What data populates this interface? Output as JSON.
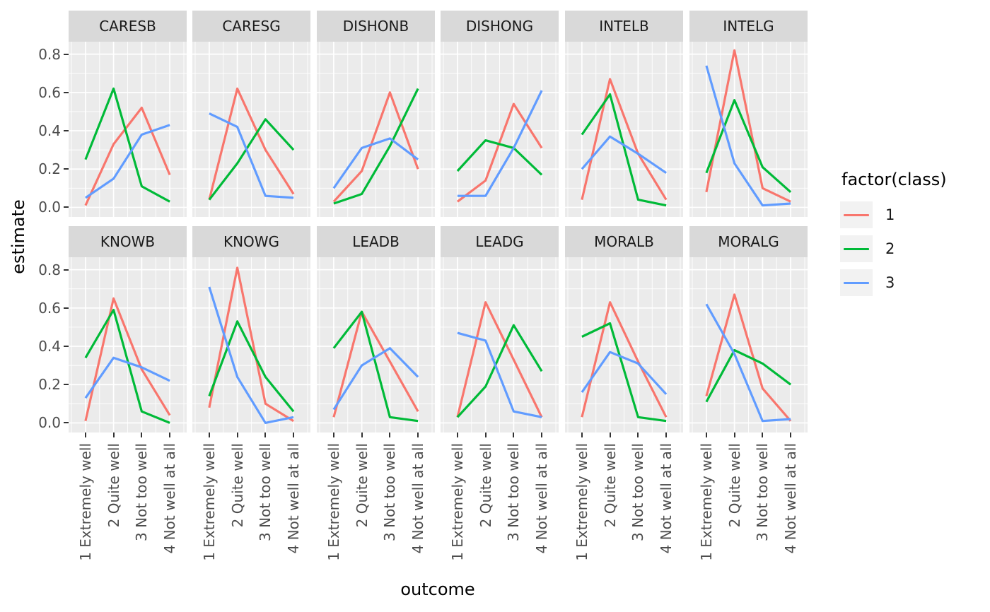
{
  "axes": {
    "y_title": "estimate",
    "x_title": "outcome",
    "y_tick_labels": [
      "0.8",
      "0.6",
      "0.4",
      "0.2",
      "0.0"
    ],
    "y_tick_values": [
      0.8,
      0.6,
      0.4,
      0.2,
      0.0
    ]
  },
  "legend": {
    "title": "factor(class)",
    "items": [
      {
        "label": "1",
        "color": "#F8766D"
      },
      {
        "label": "2",
        "color": "#00BA38"
      },
      {
        "label": "3",
        "color": "#619CFF"
      }
    ]
  },
  "theme": {
    "page_bg": "#FFFFFF",
    "panel_bg": "#EBEBEB",
    "strip_bg": "#D9D9D9",
    "grid_color": "#FFFFFF",
    "tick_color": "#333333",
    "axis_text_color": "#4D4D4D",
    "strip_text_color": "#1A1A1A"
  },
  "chart_data": {
    "type": "line",
    "xlabel": "outcome",
    "ylabel": "estimate",
    "categories": [
      "1 Extremely well",
      "2 Quite well",
      "3 Not too well",
      "4 Not well at all"
    ],
    "ylim": [
      -0.05,
      0.865
    ],
    "y_breaks": [
      0.0,
      0.2,
      0.4,
      0.6,
      0.8
    ],
    "y_minor_breaks": [
      0.1,
      0.3,
      0.5,
      0.7
    ],
    "grid": true,
    "legend_position": "right",
    "facet_layout": {
      "rows": 2,
      "cols": 6
    },
    "series_names": [
      "1",
      "2",
      "3"
    ],
    "series_colors": {
      "1": "#F8766D",
      "2": "#00BA38",
      "3": "#619CFF"
    },
    "facets": [
      {
        "title": "CARESB",
        "series": [
          {
            "name": "1",
            "values": [
              0.01,
              0.33,
              0.52,
              0.17
            ]
          },
          {
            "name": "2",
            "values": [
              0.25,
              0.62,
              0.11,
              0.03
            ]
          },
          {
            "name": "3",
            "values": [
              0.05,
              0.15,
              0.38,
              0.43
            ]
          }
        ]
      },
      {
        "title": "CARESG",
        "series": [
          {
            "name": "1",
            "values": [
              0.04,
              0.62,
              0.3,
              0.07
            ]
          },
          {
            "name": "2",
            "values": [
              0.04,
              0.23,
              0.46,
              0.3
            ]
          },
          {
            "name": "3",
            "values": [
              0.49,
              0.42,
              0.06,
              0.05
            ]
          }
        ]
      },
      {
        "title": "DISHONB",
        "series": [
          {
            "name": "1",
            "values": [
              0.03,
              0.19,
              0.6,
              0.2
            ]
          },
          {
            "name": "2",
            "values": [
              0.02,
              0.07,
              0.32,
              0.62
            ]
          },
          {
            "name": "3",
            "values": [
              0.1,
              0.31,
              0.36,
              0.25
            ]
          }
        ]
      },
      {
        "title": "DISHONG",
        "series": [
          {
            "name": "1",
            "values": [
              0.03,
              0.14,
              0.54,
              0.31
            ]
          },
          {
            "name": "2",
            "values": [
              0.19,
              0.35,
              0.31,
              0.17
            ]
          },
          {
            "name": "3",
            "values": [
              0.06,
              0.06,
              0.31,
              0.61
            ]
          }
        ]
      },
      {
        "title": "INTELB",
        "series": [
          {
            "name": "1",
            "values": [
              0.04,
              0.67,
              0.28,
              0.04
            ]
          },
          {
            "name": "2",
            "values": [
              0.38,
              0.59,
              0.04,
              0.01
            ]
          },
          {
            "name": "3",
            "values": [
              0.2,
              0.37,
              0.28,
              0.18
            ]
          }
        ]
      },
      {
        "title": "INTELG",
        "series": [
          {
            "name": "1",
            "values": [
              0.08,
              0.82,
              0.1,
              0.03
            ]
          },
          {
            "name": "2",
            "values": [
              0.18,
              0.56,
              0.21,
              0.08
            ]
          },
          {
            "name": "3",
            "values": [
              0.74,
              0.23,
              0.01,
              0.02
            ]
          }
        ]
      },
      {
        "title": "KNOWB",
        "series": [
          {
            "name": "1",
            "values": [
              0.01,
              0.65,
              0.28,
              0.04
            ]
          },
          {
            "name": "2",
            "values": [
              0.34,
              0.59,
              0.06,
              0.0
            ]
          },
          {
            "name": "3",
            "values": [
              0.13,
              0.34,
              0.29,
              0.22
            ]
          }
        ]
      },
      {
        "title": "KNOWG",
        "series": [
          {
            "name": "1",
            "values": [
              0.08,
              0.81,
              0.1,
              0.01
            ]
          },
          {
            "name": "2",
            "values": [
              0.14,
              0.53,
              0.24,
              0.06
            ]
          },
          {
            "name": "3",
            "values": [
              0.71,
              0.24,
              0.0,
              0.03
            ]
          }
        ]
      },
      {
        "title": "LEADB",
        "series": [
          {
            "name": "1",
            "values": [
              0.03,
              0.58,
              0.32,
              0.06
            ]
          },
          {
            "name": "2",
            "values": [
              0.39,
              0.58,
              0.03,
              0.01
            ]
          },
          {
            "name": "3",
            "values": [
              0.07,
              0.3,
              0.39,
              0.24
            ]
          }
        ]
      },
      {
        "title": "LEADG",
        "series": [
          {
            "name": "1",
            "values": [
              0.03,
              0.63,
              0.33,
              0.03
            ]
          },
          {
            "name": "2",
            "values": [
              0.03,
              0.19,
              0.51,
              0.27
            ]
          },
          {
            "name": "3",
            "values": [
              0.47,
              0.43,
              0.06,
              0.03
            ]
          }
        ]
      },
      {
        "title": "MORALB",
        "series": [
          {
            "name": "1",
            "values": [
              0.03,
              0.63,
              0.32,
              0.03
            ]
          },
          {
            "name": "2",
            "values": [
              0.45,
              0.52,
              0.03,
              0.01
            ]
          },
          {
            "name": "3",
            "values": [
              0.16,
              0.37,
              0.31,
              0.15
            ]
          }
        ]
      },
      {
        "title": "MORALG",
        "series": [
          {
            "name": "1",
            "values": [
              0.14,
              0.67,
              0.18,
              0.01
            ]
          },
          {
            "name": "2",
            "values": [
              0.11,
              0.38,
              0.31,
              0.2
            ]
          },
          {
            "name": "3",
            "values": [
              0.62,
              0.36,
              0.01,
              0.02
            ]
          }
        ]
      }
    ]
  }
}
